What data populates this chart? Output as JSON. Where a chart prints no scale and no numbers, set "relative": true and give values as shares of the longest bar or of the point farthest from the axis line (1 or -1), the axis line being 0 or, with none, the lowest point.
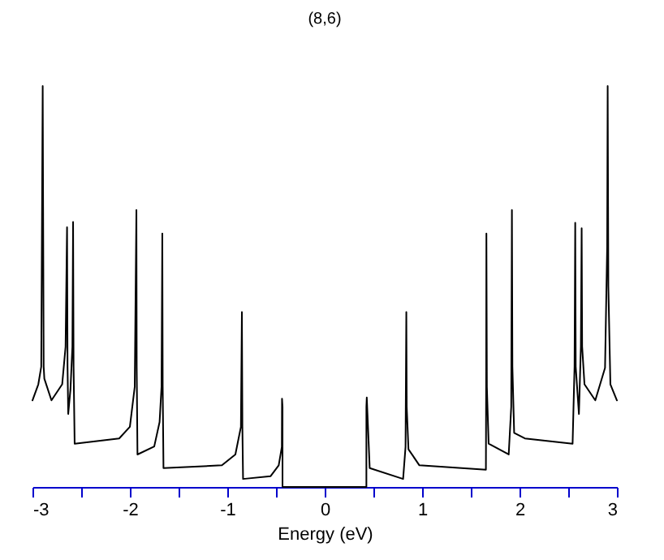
{
  "chart_data": {
    "type": "line",
    "title": "(8,6)",
    "xlabel": "Energy (eV)",
    "relative": true,
    "xlim": [
      -3,
      3
    ],
    "xticks": [
      -3,
      {
        "value": -2.5,
        "label": null
      },
      -2,
      {
        "value": -1.5,
        "label": null
      },
      -1,
      {
        "value": -0.5,
        "label": null
      },
      0,
      {
        "value": 0.5,
        "label": null
      },
      1,
      {
        "value": 1.5,
        "label": null
      },
      2,
      {
        "value": 2.5,
        "label": null
      },
      3
    ],
    "grid": false,
    "legend": false,
    "marker": "none",
    "line_style": "solid",
    "tick_labels": "x",
    "series": [
      {
        "color": "#000000",
        "x": [
          -3.0,
          -2.94,
          -2.91,
          -2.895,
          -2.885,
          -2.878,
          -2.805,
          -2.695,
          -2.66,
          -2.645,
          -2.64,
          -2.633,
          -2.61,
          -2.59,
          -2.583,
          -2.578,
          -2.567,
          -2.11,
          -2.0,
          -1.95,
          -1.933,
          -1.93,
          -1.922,
          -1.75,
          -1.695,
          -1.675,
          -1.667,
          -1.663,
          -1.655,
          -1.055,
          -0.917,
          -0.86,
          -0.85,
          -0.845,
          -0.838,
          -0.555,
          -0.472,
          -0.44,
          -0.438,
          -0.433,
          -0.433,
          0.428,
          0.428,
          0.432,
          0.462,
          0.805,
          0.83,
          0.838,
          0.842,
          0.86,
          0.972,
          1.655,
          1.658,
          1.66,
          1.665,
          1.683,
          1.889,
          1.915,
          1.922,
          1.927,
          1.945,
          2.055,
          2.545,
          2.565,
          2.572,
          2.577,
          2.61,
          2.63,
          2.638,
          2.643,
          2.667,
          2.778,
          2.878,
          2.9,
          2.905,
          2.912,
          2.933,
          3.0
        ],
        "values": [
          0.216,
          0.256,
          0.3,
          1.0,
          0.3,
          0.27,
          0.216,
          0.256,
          0.35,
          0.648,
          0.3,
          0.182,
          0.243,
          0.35,
          0.661,
          0.3,
          0.108,
          0.121,
          0.15,
          0.25,
          0.691,
          0.3,
          0.081,
          0.101,
          0.162,
          0.25,
          0.632,
          0.25,
          0.047,
          0.054,
          0.081,
          0.15,
          0.436,
          0.15,
          0.02,
          0.027,
          0.054,
          0.1,
          0.22,
          0.2,
          0,
          0,
          0.2,
          0.223,
          0.047,
          0.02,
          0.1,
          0.436,
          0.2,
          0.094,
          0.054,
          0.043,
          0.3,
          0.632,
          0.25,
          0.108,
          0.081,
          0.2,
          0.691,
          0.3,
          0.135,
          0.121,
          0.108,
          0.3,
          0.659,
          0.3,
          0.182,
          0.35,
          0.645,
          0.35,
          0.256,
          0.216,
          0.297,
          0.6,
          1.0,
          0.5,
          0.256,
          0.216
        ]
      }
    ]
  }
}
